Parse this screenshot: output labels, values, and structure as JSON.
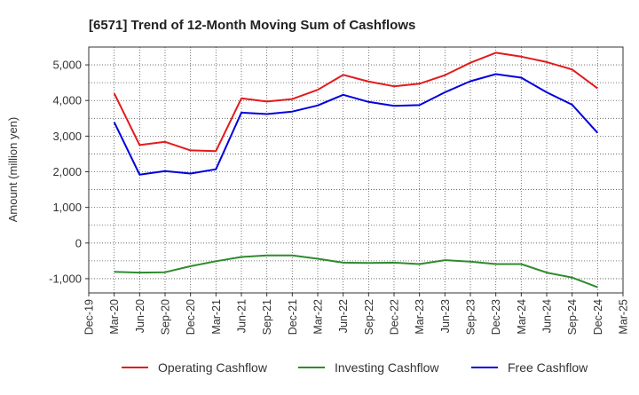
{
  "chart_data": {
    "type": "line",
    "title": "[6571]  Trend of 12-Month Moving Sum of Cashflows",
    "ylabel": "Amount (million yen)",
    "xlabel": "",
    "ylim": [
      -1400,
      5500
    ],
    "yticks": [
      -1000,
      0,
      1000,
      2000,
      3000,
      4000,
      5000
    ],
    "ytick_labels": [
      "-1,000",
      "0",
      "1,000",
      "2,000",
      "3,000",
      "4,000",
      "5,000"
    ],
    "x_ticks": [
      "Dec-19",
      "Mar-20",
      "Jun-20",
      "Sep-20",
      "Dec-20",
      "Mar-21",
      "Jun-21",
      "Sep-21",
      "Dec-21",
      "Mar-22",
      "Jun-22",
      "Sep-22",
      "Dec-22",
      "Mar-23",
      "Jun-23",
      "Sep-23",
      "Dec-23",
      "Mar-24",
      "Jun-24",
      "Sep-24",
      "Dec-24",
      "Mar-25"
    ],
    "x": [
      "Mar-20",
      "Jun-20",
      "Sep-20",
      "Dec-20",
      "Mar-21",
      "Jun-21",
      "Sep-21",
      "Dec-21",
      "Mar-22",
      "Jun-22",
      "Sep-22",
      "Dec-22",
      "Mar-23",
      "Jun-23",
      "Sep-23",
      "Dec-23",
      "Mar-24",
      "Jun-24",
      "Sep-24",
      "Dec-24"
    ],
    "grid": true,
    "legend_position": "bottom",
    "series": [
      {
        "name": "Operating Cashflow",
        "color": "#e31a1c",
        "values": [
          4200,
          2750,
          2840,
          2600,
          2580,
          4060,
          3970,
          4040,
          4300,
          4720,
          4530,
          4400,
          4470,
          4710,
          5060,
          5340,
          5230,
          5080,
          4870,
          4340
        ]
      },
      {
        "name": "Investing Cashflow",
        "color": "#2e8b2e",
        "values": [
          -810,
          -830,
          -820,
          -650,
          -510,
          -390,
          -350,
          -350,
          -440,
          -550,
          -560,
          -550,
          -590,
          -480,
          -520,
          -590,
          -590,
          -830,
          -970,
          -1240
        ]
      },
      {
        "name": "Free Cashflow",
        "color": "#0000dd",
        "values": [
          3390,
          1920,
          2020,
          1950,
          2070,
          3660,
          3620,
          3690,
          3860,
          4160,
          3960,
          3850,
          3870,
          4230,
          4540,
          4740,
          4640,
          4230,
          3880,
          3090
        ]
      }
    ]
  }
}
